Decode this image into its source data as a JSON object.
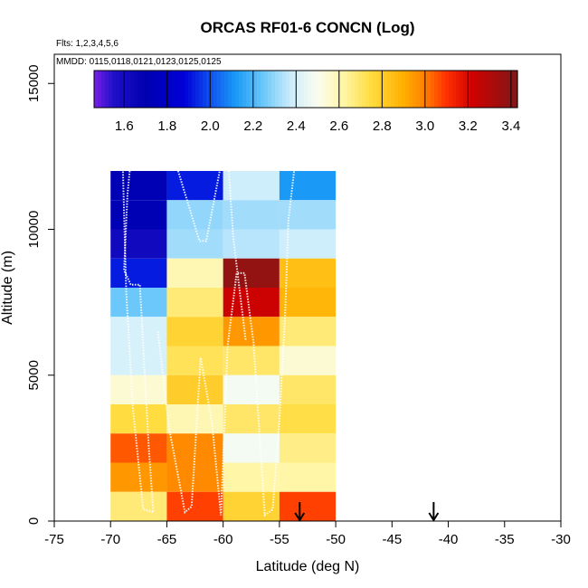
{
  "chart_data": {
    "type": "heatmap",
    "title": "ORCAS RF01-6 CONCN (Log)",
    "xlabel": "Latitude (deg N)",
    "ylabel": "Altitude (m)",
    "flights_note": "Flts: 1,2,3,4,5,6",
    "mmdd_note": "MMDD: 0115,0118,0121,0123,0125,0125",
    "xlim": [
      -75,
      -30
    ],
    "ylim": [
      0,
      16000
    ],
    "x_ticks": [
      -75,
      -70,
      -65,
      -60,
      -55,
      -50,
      -45,
      -40,
      -35,
      -30
    ],
    "x_tick_labels": [
      "-75",
      "-70",
      "-65",
      "-60",
      "-55",
      "-50",
      "-45",
      "-40",
      "-35",
      "-30"
    ],
    "y_ticks": [
      0,
      5000,
      10000,
      15000
    ],
    "y_tick_labels": [
      "0",
      "5000",
      "10000",
      "15000"
    ],
    "colorbar": {
      "range": [
        1.46,
        3.43
      ],
      "ticks": [
        1.6,
        1.8,
        2.0,
        2.2,
        2.4,
        2.6,
        2.8,
        3.0,
        3.2,
        3.4
      ],
      "tick_labels": [
        "1.6",
        "1.8",
        "2.0",
        "2.2",
        "2.4",
        "2.6",
        "2.8",
        "3.0",
        "3.2",
        "3.4"
      ],
      "stops": [
        [
          1.46,
          "#7a1ee6"
        ],
        [
          1.55,
          "#2010c8"
        ],
        [
          1.7,
          "#0000b0"
        ],
        [
          1.88,
          "#0000d8"
        ],
        [
          2.0,
          "#1050f0"
        ],
        [
          2.12,
          "#1a9af6"
        ],
        [
          2.25,
          "#6cc8fa"
        ],
        [
          2.38,
          "#cfeefc"
        ],
        [
          2.5,
          "#fafdf0"
        ],
        [
          2.62,
          "#fff6a8"
        ],
        [
          2.75,
          "#ffdc40"
        ],
        [
          2.9,
          "#ffb000"
        ],
        [
          3.0,
          "#ff8000"
        ],
        [
          3.1,
          "#ff3000"
        ],
        [
          3.22,
          "#d00000"
        ],
        [
          3.43,
          "#801818"
        ]
      ]
    },
    "bin_size": {
      "lat": 5,
      "alt": 1000
    },
    "cells": [
      {
        "lat": -70,
        "alt": 11000,
        "value": 1.72
      },
      {
        "lat": -70,
        "alt": 10000,
        "value": 1.72
      },
      {
        "lat": -70,
        "alt": 9000,
        "value": 1.62
      },
      {
        "lat": -70,
        "alt": 8000,
        "value": 1.92
      },
      {
        "lat": -70,
        "alt": 7000,
        "value": 2.25
      },
      {
        "lat": -70,
        "alt": 6000,
        "value": 2.4
      },
      {
        "lat": -70,
        "alt": 5000,
        "value": 2.4
      },
      {
        "lat": -70,
        "alt": 4000,
        "value": 2.55
      },
      {
        "lat": -70,
        "alt": 3000,
        "value": 2.75
      },
      {
        "lat": -70,
        "alt": 2000,
        "value": 3.05
      },
      {
        "lat": -70,
        "alt": 1000,
        "value": 2.95
      },
      {
        "lat": -70,
        "alt": 0,
        "value": 2.68
      },
      {
        "lat": -65,
        "alt": 11000,
        "value": 1.92
      },
      {
        "lat": -65,
        "alt": 10000,
        "value": 2.3
      },
      {
        "lat": -65,
        "alt": 9000,
        "value": 2.32
      },
      {
        "lat": -65,
        "alt": 8000,
        "value": 2.6
      },
      {
        "lat": -65,
        "alt": 7000,
        "value": 2.68
      },
      {
        "lat": -65,
        "alt": 6000,
        "value": 2.78
      },
      {
        "lat": -65,
        "alt": 5000,
        "value": 2.72
      },
      {
        "lat": -65,
        "alt": 4000,
        "value": 2.8
      },
      {
        "lat": -65,
        "alt": 3000,
        "value": 2.6
      },
      {
        "lat": -65,
        "alt": 2000,
        "value": 2.98
      },
      {
        "lat": -65,
        "alt": 1000,
        "value": 2.98
      },
      {
        "lat": -65,
        "alt": 0,
        "value": 3.08
      },
      {
        "lat": -60,
        "alt": 11000,
        "value": 2.38
      },
      {
        "lat": -60,
        "alt": 10000,
        "value": 2.32
      },
      {
        "lat": -60,
        "alt": 9000,
        "value": 2.35
      },
      {
        "lat": -60,
        "alt": 8000,
        "value": 3.38
      },
      {
        "lat": -60,
        "alt": 7000,
        "value": 3.23
      },
      {
        "lat": -60,
        "alt": 6000,
        "value": 2.95
      },
      {
        "lat": -60,
        "alt": 5000,
        "value": 2.7
      },
      {
        "lat": -60,
        "alt": 4000,
        "value": 2.48
      },
      {
        "lat": -60,
        "alt": 3000,
        "value": 2.7
      },
      {
        "lat": -60,
        "alt": 2000,
        "value": 2.48
      },
      {
        "lat": -60,
        "alt": 1000,
        "value": 2.62
      },
      {
        "lat": -60,
        "alt": 0,
        "value": 2.78
      },
      {
        "lat": -55,
        "alt": 11000,
        "value": 2.12
      },
      {
        "lat": -55,
        "alt": 10000,
        "value": 2.32
      },
      {
        "lat": -55,
        "alt": 9000,
        "value": 2.38
      },
      {
        "lat": -55,
        "alt": 8000,
        "value": 2.85
      },
      {
        "lat": -55,
        "alt": 7000,
        "value": 2.88
      },
      {
        "lat": -55,
        "alt": 6000,
        "value": 2.68
      },
      {
        "lat": -55,
        "alt": 5000,
        "value": 2.55
      },
      {
        "lat": -55,
        "alt": 4000,
        "value": 2.7
      },
      {
        "lat": -55,
        "alt": 3000,
        "value": 2.74
      },
      {
        "lat": -55,
        "alt": 2000,
        "value": 2.66
      },
      {
        "lat": -55,
        "alt": 1000,
        "value": 2.62
      },
      {
        "lat": -55,
        "alt": 0,
        "value": 3.08
      }
    ],
    "tracks": [
      [
        [
          -68.3,
          12000
        ],
        [
          -68.5,
          11200
        ],
        [
          -68.8,
          8600
        ],
        [
          -68.2,
          8100
        ],
        [
          -67.4,
          8100
        ],
        [
          -66.6,
          2500
        ],
        [
          -66.2,
          300
        ],
        [
          -67.1,
          400
        ],
        [
          -68.0,
          3800
        ],
        [
          -68.6,
          7800
        ],
        [
          -68.9,
          12000
        ]
      ],
      [
        [
          -64.0,
          12000
        ],
        [
          -62.1,
          9600
        ],
        [
          -61.5,
          9600
        ],
        [
          -60.3,
          12000
        ]
      ],
      [
        [
          -65.8,
          6500
        ],
        [
          -64.8,
          3200
        ],
        [
          -63.4,
          300
        ],
        [
          -62.8,
          500
        ],
        [
          -62.0,
          5600
        ],
        [
          -61.0,
          3400
        ],
        [
          -60.2,
          200
        ],
        [
          -59.6,
          6000
        ],
        [
          -58.8,
          8500
        ],
        [
          -58.1,
          8500
        ],
        [
          -57.3,
          6100
        ],
        [
          -56.3,
          200
        ],
        [
          -55.6,
          400
        ],
        [
          -55.0,
          3500
        ],
        [
          -54.5,
          7000
        ],
        [
          -54.2,
          10300
        ],
        [
          -53.7,
          12000
        ]
      ],
      [
        [
          -59.5,
          12000
        ],
        [
          -59.1,
          9700
        ],
        [
          -58.5,
          7800
        ],
        [
          -58.0,
          6200
        ]
      ]
    ],
    "markers": [
      {
        "lat": -53.2,
        "alt": 0
      },
      {
        "lat": -41.3,
        "alt": 0
      }
    ]
  }
}
